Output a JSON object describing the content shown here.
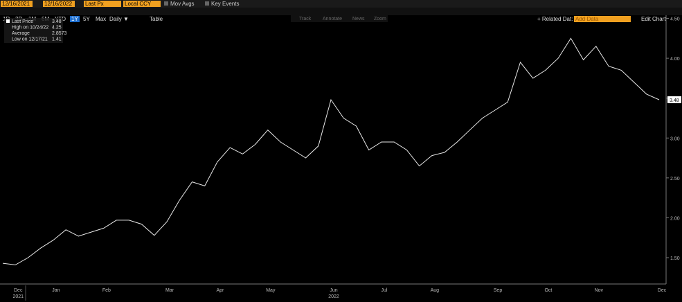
{
  "toolbar": {
    "start_date": "12/16/2021",
    "end_date": "12/16/2022",
    "field": "Last Px",
    "currency": "Local CCY",
    "mov_avgs": "Mov Avgs",
    "key_events": "Key Events",
    "ranges": [
      "1D",
      "3D",
      "1M",
      "6M",
      "YTD",
      "1Y",
      "5Y",
      "Max"
    ],
    "selected_range": "1Y",
    "period": "Daily ▼",
    "table": "Table",
    "related": "+ Related Dat:",
    "add_data": "Add Data",
    "edit_chart": "Edit Chart",
    "tools": [
      "Track",
      "Annotate",
      "News",
      "Zoom"
    ]
  },
  "legend": {
    "rows": [
      [
        "Last Price",
        "3.48"
      ],
      [
        "High on 10/24/22",
        "4.25"
      ],
      [
        "Average",
        "2.8573"
      ],
      [
        "Low on 12/17/21",
        "1.41"
      ]
    ]
  },
  "chart_data": {
    "type": "line",
    "categories": [
      null,
      "Dec",
      null,
      null,
      "Jan",
      null,
      null,
      null,
      "Feb",
      null,
      null,
      null,
      null,
      "Mar",
      null,
      null,
      null,
      "Apr",
      null,
      null,
      null,
      "May",
      null,
      null,
      null,
      null,
      "Jun",
      null,
      null,
      null,
      "Jul",
      null,
      null,
      null,
      "Aug",
      null,
      null,
      null,
      null,
      "Sep",
      null,
      null,
      null,
      "Oct",
      null,
      null,
      null,
      "Nov",
      null,
      null,
      null,
      null,
      "Dec"
    ],
    "year_labels": [
      {
        "index": 1,
        "label": "2021"
      },
      {
        "index": 26,
        "label": "2022"
      }
    ],
    "series": [
      {
        "name": "Last Price",
        "color": "#e8e8e8",
        "values": [
          1.43,
          1.41,
          1.5,
          1.62,
          1.72,
          1.85,
          1.77,
          1.82,
          1.87,
          1.97,
          1.97,
          1.92,
          1.78,
          1.95,
          2.22,
          2.45,
          2.4,
          2.7,
          2.88,
          2.8,
          2.92,
          3.1,
          2.95,
          2.85,
          2.75,
          2.9,
          3.48,
          3.25,
          3.15,
          2.85,
          2.95,
          2.95,
          2.85,
          2.65,
          2.78,
          2.82,
          2.95,
          3.1,
          3.25,
          3.35,
          3.45,
          3.95,
          3.75,
          3.85,
          4.0,
          4.25,
          3.98,
          4.15,
          3.9,
          3.85,
          3.7,
          3.55,
          3.48
        ]
      }
    ],
    "last_value_label": "3.48",
    "ylim": [
      1.17,
      4.6
    ],
    "yticks": [
      {
        "value": 1.5,
        "label": "1.50"
      },
      {
        "value": 2,
        "label": "2.00"
      },
      {
        "value": 2.5,
        "label": "2.50"
      },
      {
        "value": 3,
        "label": "3.00"
      },
      {
        "value": 3.5,
        "label": "3.50"
      },
      {
        "value": 4,
        "label": "4.00"
      },
      {
        "value": 4.5,
        "label": "4.50"
      }
    ]
  }
}
